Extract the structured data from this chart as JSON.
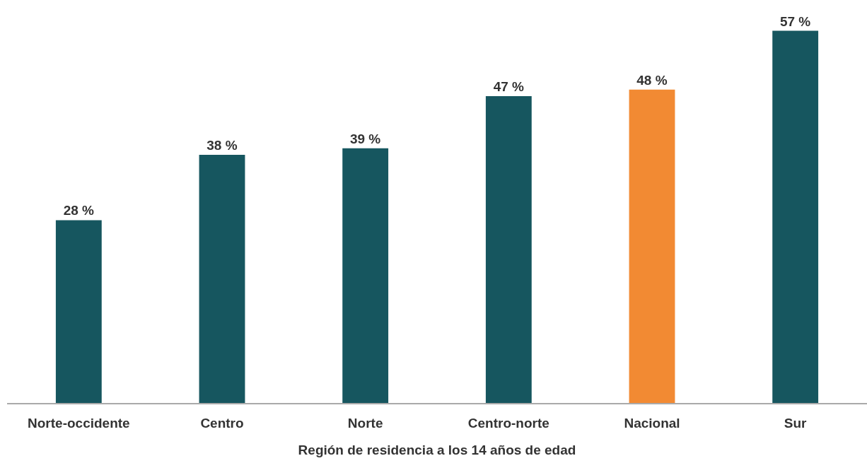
{
  "chart_data": {
    "type": "bar",
    "xlabel": "Región de residencia a los 14 años de edad",
    "categories": [
      "Norte-occidente",
      "Centro",
      "Norte",
      "Centro-norte",
      "Nacional",
      "Sur"
    ],
    "values": [
      28,
      38,
      39,
      47,
      48,
      57
    ],
    "colors": [
      "#16565f",
      "#16565f",
      "#16565f",
      "#16565f",
      "#f28a33",
      "#16565f"
    ],
    "value_labels": [
      "28 %",
      "38 %",
      "39 %",
      "47 %",
      "48 %",
      "57 %"
    ],
    "legend": false
  }
}
